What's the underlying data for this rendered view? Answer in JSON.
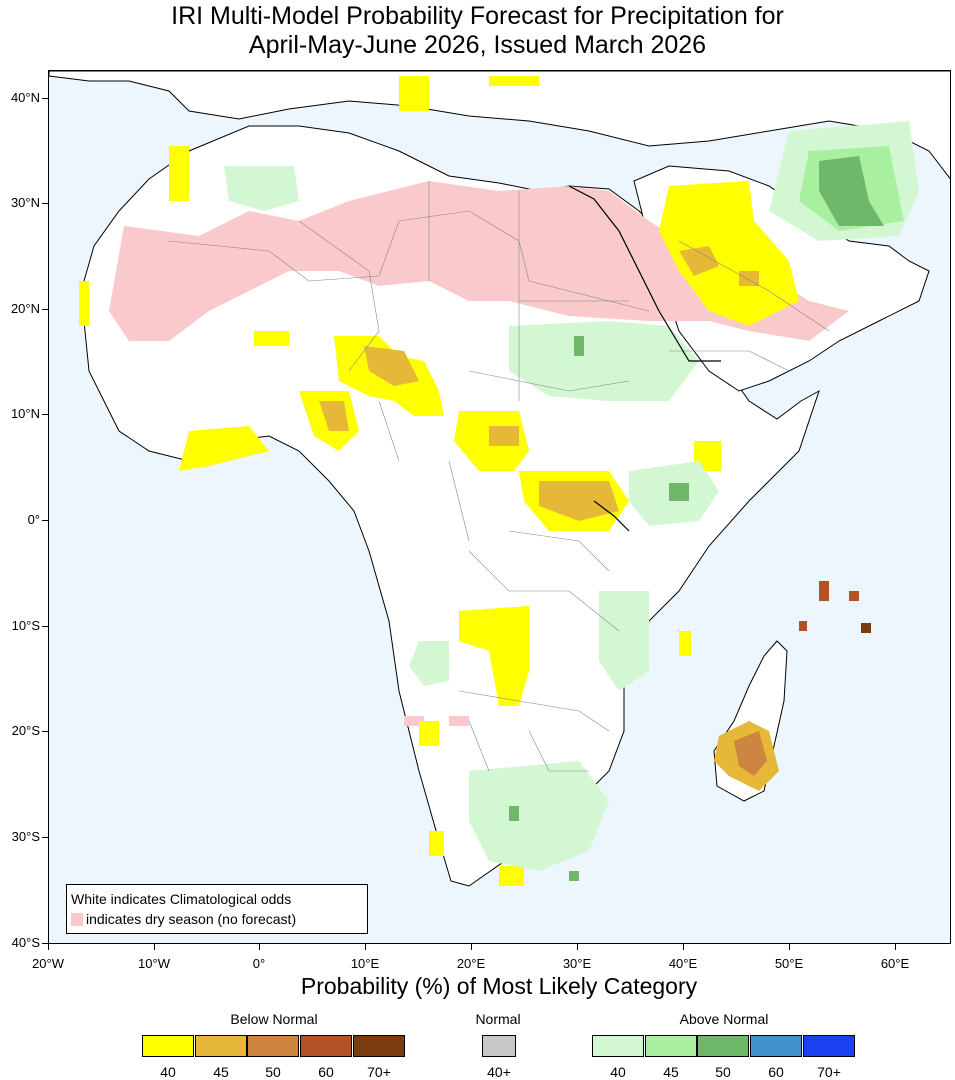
{
  "title": {
    "line1": "IRI Multi-Model Probability Forecast for Precipitation for",
    "line2": "April-May-June 2026, Issued March 2026"
  },
  "map": {
    "lat_labels": [
      "40°N",
      "30°N",
      "20°N",
      "10°N",
      "0°",
      "10°S",
      "20°S",
      "30°S",
      "40°S"
    ],
    "lon_labels": [
      "20°W",
      "10°W",
      "0°",
      "10°E",
      "20°E",
      "30°E",
      "40°E",
      "50°E",
      "60°E"
    ],
    "lon_range": [
      -20,
      65
    ],
    "lat_range": [
      -40,
      42.5
    ]
  },
  "map_legend": {
    "line1": "White indicates Climatological odds",
    "line2": "indicates dry season (no forecast)"
  },
  "caption": "Probability (%) of Most Likely Category",
  "colorbar": {
    "below_title": "Below Normal",
    "normal_title": "Normal",
    "above_title": "Above Normal",
    "below": [
      {
        "label": "40",
        "color": "#ffff00"
      },
      {
        "label": "45",
        "color": "#e6b838"
      },
      {
        "label": "50",
        "color": "#cd853f"
      },
      {
        "label": "60",
        "color": "#b35226"
      },
      {
        "label": "70+",
        "color": "#7a3b0f"
      }
    ],
    "normal": [
      {
        "label": "40+",
        "color": "#c8c8c8"
      }
    ],
    "above": [
      {
        "label": "40",
        "color": "#d3f7d3"
      },
      {
        "label": "45",
        "color": "#a8f0a0"
      },
      {
        "label": "50",
        "color": "#6fb86a"
      },
      {
        "label": "60",
        "color": "#4193cc"
      },
      {
        "label": "70+",
        "color": "#1c40f0"
      }
    ]
  },
  "colors": {
    "ocean": "#eef6fd",
    "land": "#ffffff",
    "dry_season": "#f9c9cc"
  }
}
